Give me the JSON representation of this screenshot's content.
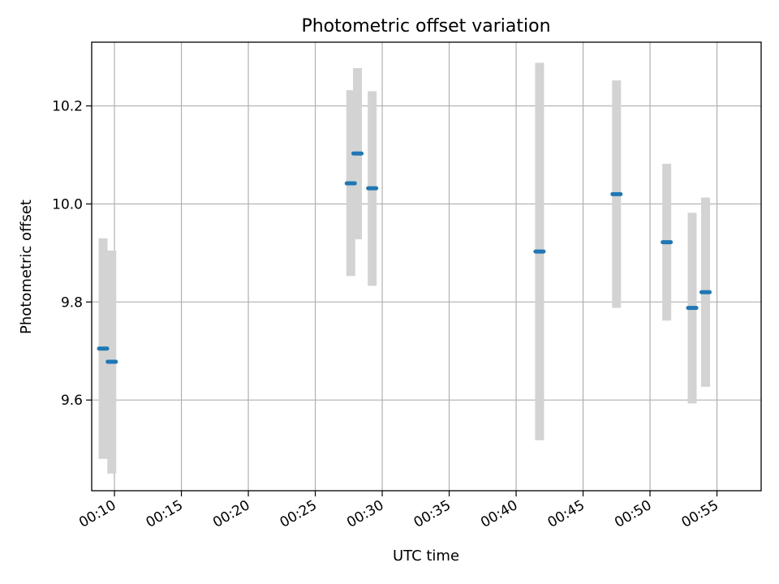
{
  "chart_data": {
    "type": "scatter",
    "title": "Photometric offset variation",
    "xlabel": "UTC time",
    "ylabel": "Photometric offset",
    "grid": true,
    "x_ticks": [
      "00:10",
      "00:15",
      "00:20",
      "00:25",
      "00:30",
      "00:35",
      "00:40",
      "00:45",
      "00:50",
      "00:55"
    ],
    "y_ticks": [
      "9.6",
      "9.8",
      "10.0",
      "10.2"
    ],
    "xlim": [
      "00:08:18",
      "00:58:18"
    ],
    "ylim": [
      9.415,
      10.33
    ],
    "points": [
      {
        "x": "00:09:09",
        "y": 9.705,
        "ylow": 9.48,
        "yhigh": 9.93
      },
      {
        "x": "00:09:48",
        "y": 9.678,
        "ylow": 9.45,
        "yhigh": 9.905
      },
      {
        "x": "00:27:39",
        "y": 10.042,
        "ylow": 9.853,
        "yhigh": 10.232
      },
      {
        "x": "00:28:09",
        "y": 10.103,
        "ylow": 9.928,
        "yhigh": 10.277
      },
      {
        "x": "00:29:15",
        "y": 10.032,
        "ylow": 9.833,
        "yhigh": 10.23
      },
      {
        "x": "00:41:45",
        "y": 9.903,
        "ylow": 9.518,
        "yhigh": 10.288
      },
      {
        "x": "00:47:30",
        "y": 10.02,
        "ylow": 9.788,
        "yhigh": 10.252
      },
      {
        "x": "00:51:15",
        "y": 9.922,
        "ylow": 9.762,
        "yhigh": 10.082
      },
      {
        "x": "00:53:09",
        "y": 9.788,
        "ylow": 9.593,
        "yhigh": 9.982
      },
      {
        "x": "00:54:09",
        "y": 9.82,
        "ylow": 9.627,
        "yhigh": 10.013
      }
    ],
    "marker_color": "#1f77b4",
    "errorbar_color": "#d3d3d3"
  }
}
